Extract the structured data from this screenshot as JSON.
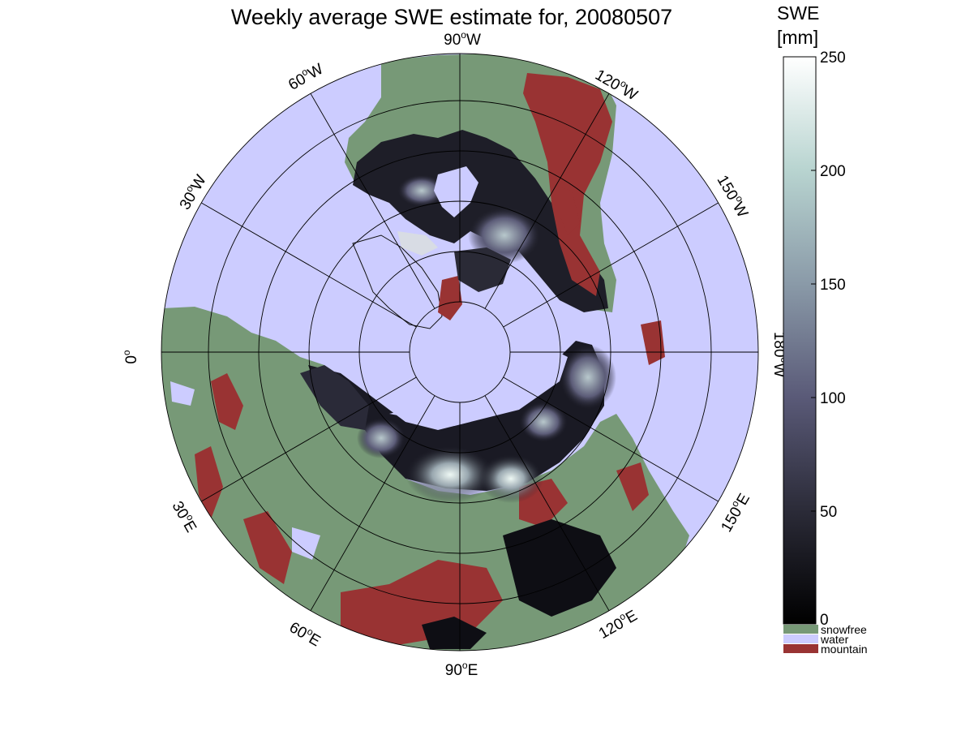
{
  "title": "Weekly average SWE estimate for, 20080507",
  "colorbar": {
    "header_line1": "SWE",
    "header_line2": "[mm]",
    "ticks": [
      "0",
      "50",
      "100",
      "150",
      "200",
      "250"
    ],
    "range": [
      0,
      250
    ],
    "colormap": [
      "#000000",
      "#2b2b38",
      "#5a5a78",
      "#8a9aa8",
      "#b8d4d0",
      "#ffffff"
    ]
  },
  "legend": [
    {
      "label": "snowfree",
      "color": "#779977"
    },
    {
      "label": "water",
      "color": "#ccccff"
    },
    {
      "label": "mountain",
      "color": "#993333"
    }
  ],
  "longitude_labels": {
    "lon_90W": {
      "deg": "90",
      "hemi": "W"
    },
    "lon_120W": {
      "deg": "120",
      "hemi": "W"
    },
    "lon_150W": {
      "deg": "150",
      "hemi": "W"
    },
    "lon_180W": {
      "deg": "180",
      "hemi": "W"
    },
    "lon_150E": {
      "deg": "150",
      "hemi": "E"
    },
    "lon_120E": {
      "deg": "120",
      "hemi": "E"
    },
    "lon_90E": {
      "deg": "90",
      "hemi": "E"
    },
    "lon_60E": {
      "deg": "60",
      "hemi": "E"
    },
    "lon_30E": {
      "deg": "30",
      "hemi": "E"
    },
    "lon_0": {
      "deg": "0",
      "hemi": ""
    },
    "lon_30W": {
      "deg": "30",
      "hemi": "W"
    },
    "lon_60W": {
      "deg": "60",
      "hemi": "W"
    }
  },
  "map_colors": {
    "water": "#ccccff",
    "snowfree": "#779977",
    "mountain": "#993333",
    "snow_low": "#15151c",
    "snow_high": "#e8f4f0"
  }
}
